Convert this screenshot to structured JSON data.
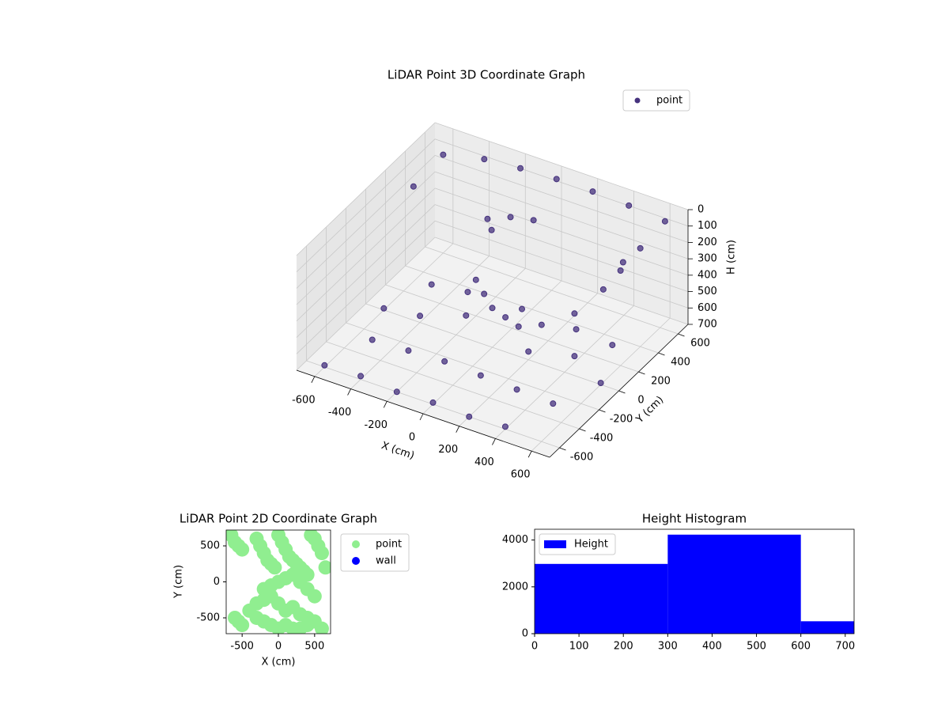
{
  "chart_data": [
    {
      "type": "scatter3d",
      "title": "LiDAR Point 3D Coordinate Graph",
      "x_label": "X (cm)",
      "y_label": "Y (cm)",
      "z_label": "H (cm)",
      "xlim": [
        -700,
        700
      ],
      "ylim": [
        -700,
        700
      ],
      "zlim": [
        0,
        700
      ],
      "z_inverted": true,
      "xticks": [
        -600,
        -400,
        -200,
        0,
        200,
        400,
        600
      ],
      "yticks": [
        -600,
        -400,
        -200,
        0,
        200,
        400,
        600
      ],
      "zticks": [
        0,
        100,
        200,
        300,
        400,
        500,
        600,
        700
      ],
      "grid": true,
      "legend": "upper right",
      "series": [
        {
          "name": "point",
          "color": "#46327e",
          "x": [
            -600,
            -400,
            -200,
            0,
            200,
            400,
            -500,
            -300,
            -100,
            100,
            300,
            500,
            -600,
            -400,
            -200,
            200,
            400,
            600,
            -500,
            -300,
            0,
            300,
            500,
            -200,
            -100,
            0,
            100,
            200,
            300,
            400,
            450,
            450,
            -300,
            -200,
            -100,
            -250,
            -600,
            -400,
            -200,
            0,
            200,
            400,
            600,
            600,
            600,
            -600
          ],
          "y": [
            -600,
            -600,
            -600,
            -600,
            -600,
            -600,
            -300,
            -300,
            -300,
            -300,
            -300,
            -300,
            0,
            0,
            100,
            0,
            100,
            0,
            300,
            300,
            300,
            300,
            300,
            200,
            100,
            0,
            -50,
            -100,
            -50,
            100,
            300,
            500,
            500,
            550,
            600,
            450,
            600,
            650,
            650,
            650,
            650,
            650,
            650,
            400,
            200,
            300
          ],
          "z": [
            690,
            680,
            700,
            690,
            700,
            685,
            670,
            660,
            650,
            660,
            670,
            680,
            690,
            660,
            640,
            650,
            660,
            690,
            680,
            650,
            640,
            650,
            670,
            480,
            470,
            460,
            450,
            440,
            420,
            400,
            350,
            300,
            320,
            300,
            310,
            340,
            100,
            80,
            60,
            50,
            50,
            60,
            80,
            100,
            120,
            120
          ]
        }
      ]
    },
    {
      "type": "scatter",
      "title": "LiDAR Point 2D Coordinate Graph",
      "x_label": "X (cm)",
      "y_label": "Y (cm)",
      "xlim": [
        -720,
        720
      ],
      "ylim": [
        -720,
        720
      ],
      "xticks": [
        -500,
        0,
        500
      ],
      "yticks": [
        -500,
        0,
        500
      ],
      "legend": "outside upper right",
      "series": [
        {
          "name": "point",
          "color": "#90ee90",
          "x": [
            -650,
            -600,
            -550,
            -500,
            -300,
            -250,
            -200,
            -150,
            -100,
            -50,
            0,
            50,
            100,
            150,
            200,
            250,
            300,
            350,
            400,
            450,
            500,
            550,
            600,
            -200,
            -100,
            0,
            100,
            200,
            300,
            400,
            500,
            -300,
            -200,
            -100,
            0,
            100,
            200,
            300,
            400,
            500,
            -400,
            -300,
            -200,
            -100,
            0,
            100,
            200,
            300,
            400,
            -600,
            -550,
            -500,
            600,
            650
          ],
          "y": [
            650,
            550,
            500,
            450,
            600,
            500,
            400,
            300,
            250,
            200,
            650,
            550,
            450,
            350,
            300,
            250,
            200,
            150,
            100,
            650,
            600,
            500,
            400,
            -100,
            -50,
            0,
            50,
            100,
            0,
            -100,
            -200,
            -300,
            -250,
            -200,
            -300,
            -400,
            -350,
            -450,
            -500,
            -550,
            -400,
            -500,
            -550,
            -600,
            -650,
            -600,
            -650,
            -650,
            -600,
            -500,
            -550,
            -600,
            -650,
            200
          ],
          "legend_marker": "circle"
        },
        {
          "name": "wall",
          "color": "#0000ff",
          "x": [],
          "y": []
        }
      ]
    },
    {
      "type": "histogram",
      "title": "Height Histogram",
      "bins": [
        0,
        300,
        600,
        720
      ],
      "counts": [
        2980,
        4230,
        530
      ],
      "xlim": [
        0,
        720
      ],
      "ylim": [
        0,
        4460
      ],
      "xticks": [
        0,
        100,
        200,
        300,
        400,
        500,
        600,
        700
      ],
      "yticks": [
        0,
        2000,
        4000
      ],
      "legend": "upper left",
      "series": [
        {
          "name": "Height",
          "color": "#0000ff"
        }
      ]
    }
  ]
}
